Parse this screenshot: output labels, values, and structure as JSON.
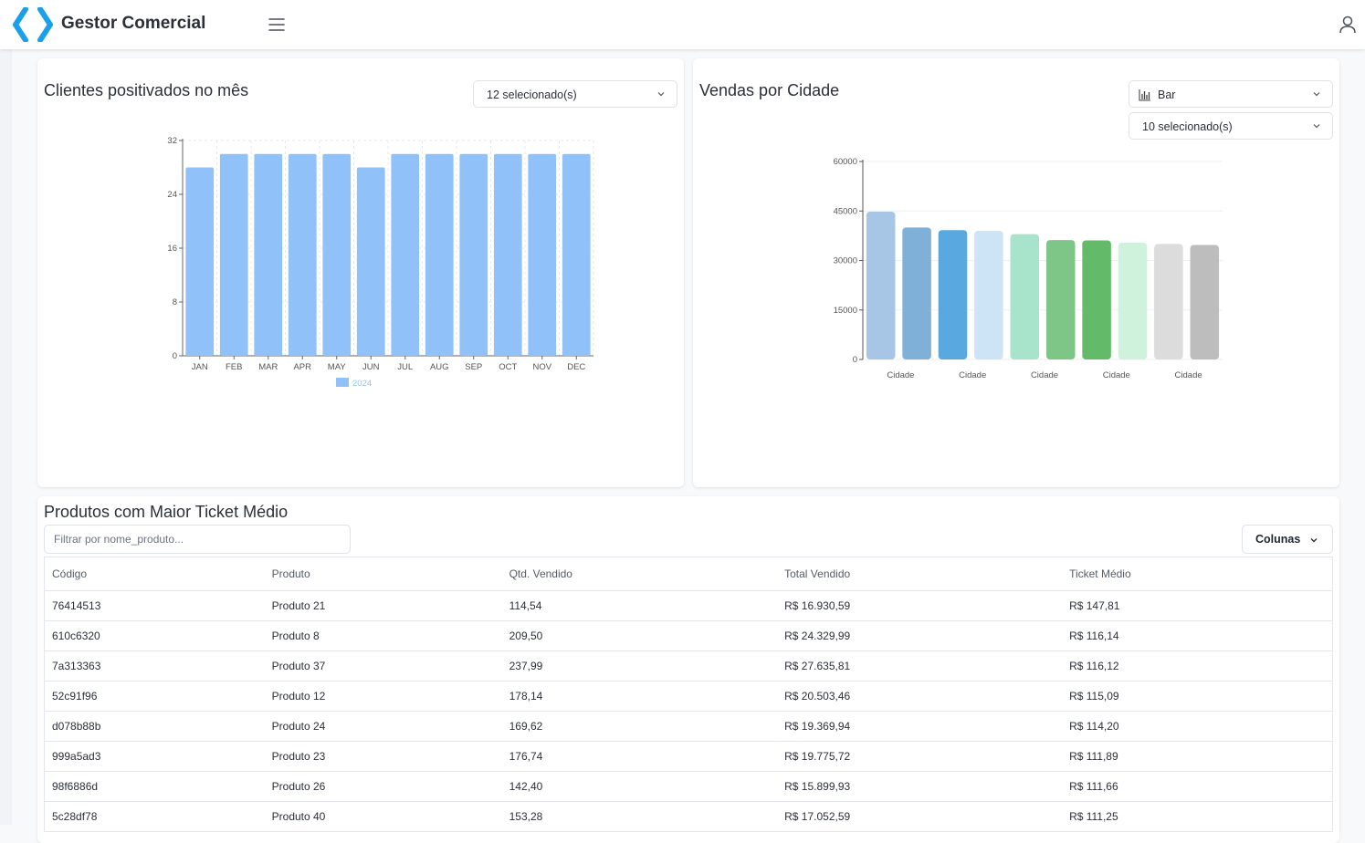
{
  "app": {
    "title": "Gestor Comercial"
  },
  "clientes": {
    "title": "Clientes positivados no mês",
    "select_label": "12 selecionado(s)"
  },
  "vendas": {
    "title": "Vendas por Cidade",
    "chart_type_label": "Bar",
    "select_label": "10 selecionado(s)"
  },
  "produtos": {
    "title": "Produtos com Maior Ticket Médio",
    "filter_placeholder": "Filtrar por nome_produto...",
    "columns_button": "Colunas",
    "headers": [
      "Código",
      "Produto",
      "Qtd. Vendido",
      "Total Vendido",
      "Ticket Médio"
    ],
    "rows": [
      [
        "76414513",
        "Produto 21",
        "114,54",
        "R$ 16.930,59",
        "R$ 147,81"
      ],
      [
        "610c6320",
        "Produto 8",
        "209,50",
        "R$ 24.329,99",
        "R$ 116,14"
      ],
      [
        "7a313363",
        "Produto 37",
        "237,99",
        "R$ 27.635,81",
        "R$ 116,12"
      ],
      [
        "52c91f96",
        "Produto 12",
        "178,14",
        "R$ 20.503,46",
        "R$ 115,09"
      ],
      [
        "d078b88b",
        "Produto 24",
        "169,62",
        "R$ 19.369,94",
        "R$ 114,20"
      ],
      [
        "999a5ad3",
        "Produto 23",
        "176,74",
        "R$ 19.775,72",
        "R$ 111,89"
      ],
      [
        "98f6886d",
        "Produto 26",
        "142,40",
        "R$ 15.899,93",
        "R$ 111,66"
      ],
      [
        "5c28df78",
        "Produto 40",
        "153,28",
        "R$ 17.052,59",
        "R$ 111,25"
      ]
    ]
  },
  "chart_data": [
    {
      "type": "bar",
      "categories": [
        "JAN",
        "FEB",
        "MAR",
        "APR",
        "MAY",
        "JUN",
        "JUL",
        "AUG",
        "SEP",
        "OCT",
        "NOV",
        "DEC"
      ],
      "series": [
        {
          "name": "2024",
          "values": [
            28,
            30,
            30,
            30,
            30,
            28,
            30,
            30,
            30,
            30,
            30,
            30
          ],
          "color": "#90c2f9"
        }
      ],
      "yticks": [
        0,
        8,
        16,
        24,
        32
      ],
      "ylim": [
        0,
        32
      ],
      "grid": true,
      "legend": "bottom"
    },
    {
      "type": "bar",
      "categories": [
        "Cidade",
        "Cidade",
        "Cidade",
        "Cidade",
        "Cidade",
        "Cidade",
        "Cidade",
        "Cidade",
        "Cidade",
        "Cidade"
      ],
      "values": [
        44800,
        40000,
        39200,
        39000,
        38000,
        36200,
        36100,
        35400,
        35000,
        34700
      ],
      "colors": [
        "#a7c6e6",
        "#7fb0d8",
        "#5aa8e0",
        "#cde4f7",
        "#a8e4cb",
        "#7ec687",
        "#63ba69",
        "#cff2dc",
        "#dcdcdc",
        "#bdbdbd"
      ],
      "yticks": [
        0,
        15000,
        30000,
        45000,
        60000
      ],
      "ylim": [
        0,
        60000
      ],
      "grid": true
    }
  ]
}
